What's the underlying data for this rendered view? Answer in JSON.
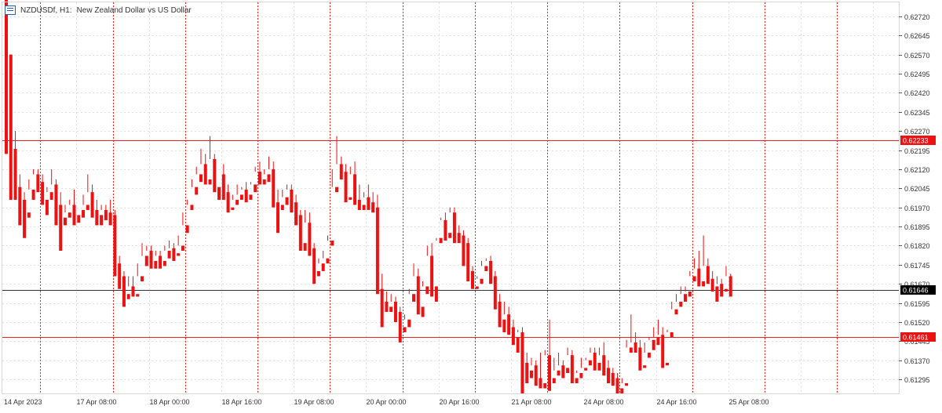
{
  "header": {
    "symbol": "NZDUSDf, H1:",
    "description": "New Zealand Dollar vs US Dollar"
  },
  "colors": {
    "bull": "#1f3fd6",
    "bear": "#ee1111",
    "grid": "#e0e0e0",
    "separator": "#ee2222",
    "price_line": "#333333",
    "level_line": "#ee2222"
  },
  "chart_data": {
    "type": "candlestick",
    "symbol": "NZDUSDf",
    "timeframe": "H1",
    "ylim": [
      0.6124,
      0.62775
    ],
    "y_ticks": [
      "0.62720",
      "0.62645",
      "0.62570",
      "0.62495",
      "0.62420",
      "0.62345",
      "0.62270",
      "0.62195",
      "0.62120",
      "0.62045",
      "0.61970",
      "0.61895",
      "0.61820",
      "0.61745",
      "0.61670",
      "0.61595",
      "0.61520",
      "0.61445",
      "0.61370",
      "0.61295"
    ],
    "x_labels": [
      "14 Apr 2023",
      "17 Apr 08:00",
      "18 Apr 00:00",
      "18 Apr 16:00",
      "19 Apr 08:00",
      "20 Apr 00:00",
      "20 Apr 16:00",
      "21 Apr 08:00",
      "24 Apr 08:00",
      "24 Apr 16:00",
      "25 Apr 08:00"
    ],
    "horizontal_levels": [
      {
        "price": 0.62233,
        "label": "0.62233",
        "style": "red"
      },
      {
        "price": 0.61646,
        "label": "0.61646",
        "style": "current"
      },
      {
        "price": 0.61461,
        "label": "0.61461",
        "style": "red"
      }
    ],
    "vertical_separators": [
      "17 Apr 00:00",
      "17 Apr 16:00",
      "18 Apr 08:00",
      "19 Apr 00:00",
      "19 Apr 16:00",
      "20 Apr 08:00",
      "21 Apr 00:00",
      "21 Apr 16:00",
      "24 Apr 00:00",
      "24 Apr 16:00",
      "25 Apr 00:00",
      "25 Apr 16:00"
    ],
    "candles": [
      [
        0.628,
        0.628,
        0.622,
        0.6218
      ],
      [
        0.6257,
        0.6257,
        0.6205,
        0.62
      ],
      [
        0.622,
        0.6227,
        0.6205,
        0.62
      ],
      [
        0.6205,
        0.621,
        0.6195,
        0.619
      ],
      [
        0.62,
        0.6203,
        0.619,
        0.6185
      ],
      [
        0.6195,
        0.6208,
        0.6204,
        0.6193
      ],
      [
        0.6204,
        0.6212,
        0.621,
        0.62
      ],
      [
        0.621,
        0.6212,
        0.6207,
        0.6203
      ],
      [
        0.6207,
        0.621,
        0.62,
        0.6198
      ],
      [
        0.62,
        0.6205,
        0.6203,
        0.6194
      ],
      [
        0.6203,
        0.6212,
        0.6206,
        0.62
      ],
      [
        0.6206,
        0.6208,
        0.6198,
        0.619
      ],
      [
        0.6198,
        0.6203,
        0.6193,
        0.618
      ],
      [
        0.6193,
        0.6198,
        0.6195,
        0.619
      ],
      [
        0.6195,
        0.62,
        0.6198,
        0.6193
      ],
      [
        0.6198,
        0.6204,
        0.6194,
        0.619
      ],
      [
        0.6194,
        0.6196,
        0.6196,
        0.6191
      ],
      [
        0.6196,
        0.6202,
        0.6198,
        0.6193
      ],
      [
        0.6198,
        0.621,
        0.6203,
        0.6196
      ],
      [
        0.6203,
        0.6206,
        0.6196,
        0.6193
      ],
      [
        0.6196,
        0.62,
        0.6194,
        0.619
      ],
      [
        0.6194,
        0.6198,
        0.6196,
        0.619
      ],
      [
        0.6196,
        0.6198,
        0.6195,
        0.6192
      ],
      [
        0.6195,
        0.62,
        0.6194,
        0.619
      ],
      [
        0.6194,
        0.6196,
        0.6175,
        0.617
      ],
      [
        0.6175,
        0.6178,
        0.617,
        0.6165
      ],
      [
        0.617,
        0.6172,
        0.6163,
        0.6158
      ],
      [
        0.6163,
        0.617,
        0.6166,
        0.6161
      ],
      [
        0.6166,
        0.617,
        0.6163,
        0.6162
      ],
      [
        0.6163,
        0.6175,
        0.617,
        0.6162
      ],
      [
        0.617,
        0.6183,
        0.6178,
        0.6168
      ],
      [
        0.6178,
        0.6182,
        0.618,
        0.6174
      ],
      [
        0.618,
        0.6182,
        0.6176,
        0.6173
      ],
      [
        0.6176,
        0.618,
        0.6178,
        0.6173
      ],
      [
        0.6178,
        0.618,
        0.6176,
        0.6173
      ],
      [
        0.6176,
        0.6182,
        0.618,
        0.6174
      ],
      [
        0.618,
        0.6184,
        0.6181,
        0.6177
      ],
      [
        0.6181,
        0.6183,
        0.6179,
        0.6176
      ],
      [
        0.6179,
        0.6186,
        0.6182,
        0.6178
      ],
      [
        0.6182,
        0.6195,
        0.619,
        0.618
      ],
      [
        0.619,
        0.62,
        0.6198,
        0.6187
      ],
      [
        0.6198,
        0.6208,
        0.6205,
        0.6196
      ],
      [
        0.6205,
        0.6213,
        0.621,
        0.6202
      ],
      [
        0.621,
        0.622,
        0.6214,
        0.6207
      ],
      [
        0.6214,
        0.6218,
        0.6208,
        0.6206
      ],
      [
        0.6208,
        0.6225,
        0.6216,
        0.6206
      ],
      [
        0.6216,
        0.6218,
        0.6205,
        0.6203
      ],
      [
        0.6205,
        0.621,
        0.621,
        0.62
      ],
      [
        0.621,
        0.6214,
        0.6203,
        0.62
      ],
      [
        0.6203,
        0.6206,
        0.6197,
        0.6195
      ],
      [
        0.6197,
        0.6202,
        0.62,
        0.6196
      ],
      [
        0.62,
        0.6206,
        0.6202,
        0.6198
      ],
      [
        0.6202,
        0.6205,
        0.6204,
        0.62
      ],
      [
        0.6204,
        0.6207,
        0.6202,
        0.6199
      ],
      [
        0.6202,
        0.6207,
        0.6206,
        0.62
      ],
      [
        0.6206,
        0.6213,
        0.6211,
        0.6203
      ],
      [
        0.6211,
        0.6215,
        0.6208,
        0.6206
      ],
      [
        0.6208,
        0.6212,
        0.621,
        0.6206
      ],
      [
        0.621,
        0.6217,
        0.6212,
        0.6207
      ],
      [
        0.6212,
        0.6215,
        0.6199,
        0.6197
      ],
      [
        0.6199,
        0.6204,
        0.6198,
        0.6187
      ],
      [
        0.6198,
        0.6204,
        0.6201,
        0.6196
      ],
      [
        0.6201,
        0.6206,
        0.6204,
        0.6198
      ],
      [
        0.6204,
        0.6206,
        0.6199,
        0.6195
      ],
      [
        0.6199,
        0.6202,
        0.6194,
        0.619
      ],
      [
        0.6194,
        0.6196,
        0.6183,
        0.618
      ],
      [
        0.6183,
        0.6196,
        0.6191,
        0.618
      ],
      [
        0.6191,
        0.6195,
        0.6181,
        0.6178
      ],
      [
        0.6181,
        0.6183,
        0.6172,
        0.6167
      ],
      [
        0.6172,
        0.6177,
        0.6175,
        0.617
      ],
      [
        0.6175,
        0.618,
        0.6177,
        0.6172
      ],
      [
        0.6177,
        0.6186,
        0.6184,
        0.6175
      ],
      [
        0.6184,
        0.6212,
        0.6205,
        0.6182
      ],
      [
        0.6205,
        0.6225,
        0.6214,
        0.6203
      ],
      [
        0.6214,
        0.6217,
        0.6211,
        0.6208
      ],
      [
        0.6211,
        0.6214,
        0.6201,
        0.6199
      ],
      [
        0.6201,
        0.6213,
        0.621,
        0.62
      ],
      [
        0.621,
        0.6215,
        0.62,
        0.6198
      ],
      [
        0.62,
        0.6206,
        0.6198,
        0.6196
      ],
      [
        0.6198,
        0.6203,
        0.6201,
        0.6196
      ],
      [
        0.6201,
        0.6206,
        0.6199,
        0.6196
      ],
      [
        0.6199,
        0.6203,
        0.6197,
        0.6195
      ],
      [
        0.6197,
        0.6202,
        0.6165,
        0.6163
      ],
      [
        0.6165,
        0.6171,
        0.616,
        0.615
      ],
      [
        0.616,
        0.6164,
        0.6158,
        0.6156
      ],
      [
        0.6158,
        0.6163,
        0.616,
        0.6156
      ],
      [
        0.616,
        0.6162,
        0.6156,
        0.6152
      ],
      [
        0.6156,
        0.6158,
        0.615,
        0.6144
      ],
      [
        0.615,
        0.6155,
        0.6153,
        0.6148
      ],
      [
        0.6153,
        0.6165,
        0.6163,
        0.615
      ],
      [
        0.6163,
        0.6175,
        0.617,
        0.616
      ],
      [
        0.617,
        0.6173,
        0.6158,
        0.6155
      ],
      [
        0.6158,
        0.6168,
        0.6166,
        0.6154
      ],
      [
        0.6166,
        0.6182,
        0.6178,
        0.6163
      ],
      [
        0.6178,
        0.6183,
        0.6166,
        0.6162
      ],
      [
        0.6166,
        0.6184,
        0.6185,
        0.616
      ],
      [
        0.6185,
        0.6193,
        0.6192,
        0.6183
      ],
      [
        0.6192,
        0.6195,
        0.6187,
        0.6184
      ],
      [
        0.6187,
        0.6197,
        0.6195,
        0.6185
      ],
      [
        0.6195,
        0.6197,
        0.6187,
        0.6183
      ],
      [
        0.6187,
        0.619,
        0.6186,
        0.6183
      ],
      [
        0.6186,
        0.6188,
        0.6183,
        0.6174
      ],
      [
        0.6183,
        0.6185,
        0.6172,
        0.6168
      ],
      [
        0.6172,
        0.6174,
        0.6166,
        0.6165
      ],
      [
        0.6166,
        0.617,
        0.6169,
        0.6165
      ],
      [
        0.6169,
        0.6176,
        0.6174,
        0.6167
      ],
      [
        0.6174,
        0.6177,
        0.6176,
        0.6172
      ],
      [
        0.6176,
        0.6178,
        0.617,
        0.6167
      ],
      [
        0.617,
        0.6172,
        0.616,
        0.6157
      ],
      [
        0.616,
        0.6163,
        0.6153,
        0.615
      ],
      [
        0.6153,
        0.616,
        0.6155,
        0.6148
      ],
      [
        0.6155,
        0.6158,
        0.615,
        0.6147
      ],
      [
        0.615,
        0.6153,
        0.6146,
        0.6143
      ],
      [
        0.6146,
        0.6149,
        0.6148,
        0.614
      ],
      [
        0.6148,
        0.615,
        0.6136,
        0.6124
      ],
      [
        0.6136,
        0.614,
        0.6133,
        0.6128
      ],
      [
        0.6133,
        0.6138,
        0.6135,
        0.613
      ],
      [
        0.6135,
        0.6137,
        0.613,
        0.6127
      ],
      [
        0.613,
        0.614,
        0.6128,
        0.6126
      ],
      [
        0.6128,
        0.6141,
        0.6139,
        0.6126
      ],
      [
        0.6139,
        0.6153,
        0.613,
        0.6125
      ],
      [
        0.613,
        0.6138,
        0.6133,
        0.6128
      ],
      [
        0.6133,
        0.614,
        0.6135,
        0.6131
      ],
      [
        0.6135,
        0.6137,
        0.6134,
        0.613
      ],
      [
        0.6134,
        0.6142,
        0.6139,
        0.6132
      ],
      [
        0.6139,
        0.6141,
        0.613,
        0.6128
      ],
      [
        0.613,
        0.6133,
        0.6132,
        0.6128
      ],
      [
        0.6132,
        0.6138,
        0.6134,
        0.613
      ],
      [
        0.6134,
        0.6138,
        0.6137,
        0.6133
      ],
      [
        0.6137,
        0.6142,
        0.614,
        0.6135
      ],
      [
        0.614,
        0.6142,
        0.6136,
        0.6133
      ],
      [
        0.6136,
        0.6142,
        0.6139,
        0.6133
      ],
      [
        0.6139,
        0.6144,
        0.6134,
        0.6131
      ],
      [
        0.6134,
        0.6137,
        0.6132,
        0.6128
      ],
      [
        0.6132,
        0.6134,
        0.613,
        0.6127
      ],
      [
        0.613,
        0.6132,
        0.6126,
        0.6124
      ],
      [
        0.6126,
        0.613,
        0.6128,
        0.6124
      ],
      [
        0.6128,
        0.6145,
        0.6142,
        0.6127
      ],
      [
        0.6142,
        0.6155,
        0.6144,
        0.614
      ],
      [
        0.6144,
        0.6148,
        0.6142,
        0.614
      ],
      [
        0.6142,
        0.6145,
        0.6135,
        0.6133
      ],
      [
        0.6135,
        0.6144,
        0.614,
        0.6134
      ],
      [
        0.614,
        0.6146,
        0.6145,
        0.6138
      ],
      [
        0.6145,
        0.615,
        0.6146,
        0.6141
      ],
      [
        0.6146,
        0.6153,
        0.6147,
        0.6143
      ],
      [
        0.6147,
        0.615,
        0.6136,
        0.6134
      ],
      [
        0.6136,
        0.6149,
        0.6148,
        0.6135
      ],
      [
        0.6148,
        0.616,
        0.6157,
        0.6146
      ],
      [
        0.6157,
        0.6163,
        0.616,
        0.6155
      ],
      [
        0.616,
        0.6166,
        0.6163,
        0.6158
      ],
      [
        0.6163,
        0.6166,
        0.6164,
        0.616
      ],
      [
        0.6164,
        0.6172,
        0.617,
        0.6162
      ],
      [
        0.617,
        0.6177,
        0.6173,
        0.6168
      ],
      [
        0.6173,
        0.618,
        0.6168,
        0.6166
      ],
      [
        0.6168,
        0.6186,
        0.6174,
        0.6166
      ],
      [
        0.6174,
        0.6177,
        0.6169,
        0.6167
      ],
      [
        0.6169,
        0.6172,
        0.6166,
        0.6164
      ],
      [
        0.6166,
        0.617,
        0.6167,
        0.616
      ],
      [
        0.6167,
        0.6169,
        0.6165,
        0.6162
      ],
      [
        0.6165,
        0.6174,
        0.617,
        0.6164
      ],
      [
        0.617,
        0.6171,
        0.6164,
        0.6162
      ]
    ]
  }
}
